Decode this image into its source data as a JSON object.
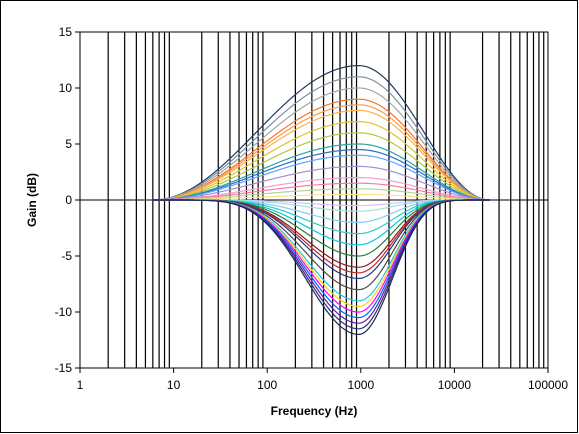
{
  "chart_data": {
    "type": "line",
    "title": "",
    "xlabel": "Frequency (Hz)",
    "ylabel": "Gain (dB)",
    "x_scale": "log",
    "xlim": [
      1,
      100000
    ],
    "ylim": [
      -15,
      15
    ],
    "x_ticks": [
      "1",
      "10",
      "100",
      "1000",
      "10000",
      "100000"
    ],
    "y_ticks": [
      "15",
      "10",
      "5",
      "0",
      "-5",
      "-10",
      "-15"
    ],
    "grid": "vertical minor gridlines at each decade subdivision",
    "legend": "none",
    "center_frequency": 950,
    "flat_below": 6,
    "flat_above": 24000,
    "series": [
      {
        "peak_gain": 12.0,
        "color": "#1f3a5f"
      },
      {
        "peak_gain": 11.0,
        "color": "#7f8fa6"
      },
      {
        "peak_gain": 10.0,
        "color": "#a6a6a6"
      },
      {
        "peak_gain": 9.0,
        "color": "#f4782a"
      },
      {
        "peak_gain": 8.5,
        "color": "#ff9b4a"
      },
      {
        "peak_gain": 8.0,
        "color": "#ffb347"
      },
      {
        "peak_gain": 7.0,
        "color": "#e6c229"
      },
      {
        "peak_gain": 6.0,
        "color": "#b5c93a"
      },
      {
        "peak_gain": 5.0,
        "color": "#2aa5a0"
      },
      {
        "peak_gain": 4.5,
        "color": "#2c6fd1"
      },
      {
        "peak_gain": 4.0,
        "color": "#5fa4ff"
      },
      {
        "peak_gain": 3.0,
        "color": "#a78bd6"
      },
      {
        "peak_gain": 2.0,
        "color": "#f2a0c8"
      },
      {
        "peak_gain": 1.5,
        "color": "#ff77a8"
      },
      {
        "peak_gain": 1.0,
        "color": "#b0d890"
      },
      {
        "peak_gain": 0.5,
        "color": "#ffe08a"
      },
      {
        "peak_gain": -0.5,
        "color": "#d9c2ff"
      },
      {
        "peak_gain": -1.0,
        "color": "#9fe3d9"
      },
      {
        "peak_gain": -2.0,
        "color": "#7fd0f5"
      },
      {
        "peak_gain": -3.0,
        "color": "#30c8c8"
      },
      {
        "peak_gain": -4.0,
        "color": "#00c9e0"
      },
      {
        "peak_gain": -5.0,
        "color": "#2e7d32"
      },
      {
        "peak_gain": -6.0,
        "color": "#8b1e1e"
      },
      {
        "peak_gain": -6.5,
        "color": "#c62828"
      },
      {
        "peak_gain": -7.0,
        "color": "#1e3a8a"
      },
      {
        "peak_gain": -8.0,
        "color": "#4a4a4a"
      },
      {
        "peak_gain": -9.0,
        "color": "#26c6da"
      },
      {
        "peak_gain": -9.5,
        "color": "#ffd400"
      },
      {
        "peak_gain": -10.0,
        "color": "#ff00ff"
      },
      {
        "peak_gain": -10.5,
        "color": "#0066ff"
      },
      {
        "peak_gain": -11.0,
        "color": "#6a1b9a"
      },
      {
        "peak_gain": -11.5,
        "color": "#2b2b8a"
      },
      {
        "peak_gain": -12.0,
        "color": "#1c2f4f"
      }
    ]
  }
}
